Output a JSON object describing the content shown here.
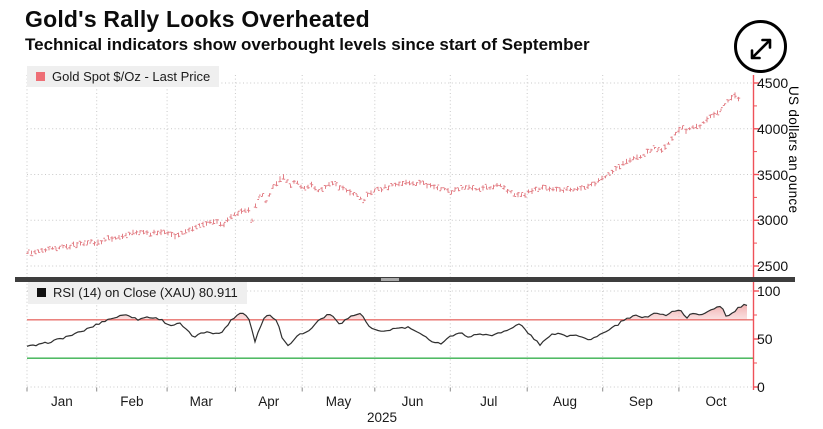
{
  "header": {
    "title": "Gold's Rally Looks Overheated",
    "subtitle": "Technical indicators show overbought levels since start of September"
  },
  "expand_button": {
    "icon": "expand-diagonal-arrows"
  },
  "price_panel": {
    "legend": {
      "swatch_color": "#ee6f76",
      "label": "Gold Spot $/Oz - Last Price"
    },
    "axis_right": {
      "title": "US dollars an ounce",
      "ticks": [
        4500,
        4000,
        3500,
        3000,
        2500
      ]
    }
  },
  "rsi_panel": {
    "legend": {
      "swatch_color": "#111111",
      "label": "RSI (14)  on Close (XAU) 80.911"
    },
    "axis_right": {
      "ticks": [
        100,
        50,
        0
      ]
    },
    "overbought_level": 70,
    "oversold_level": 30
  },
  "x_axis": {
    "months": [
      "Jan",
      "Feb",
      "Mar",
      "Apr",
      "May",
      "Jun",
      "Jul",
      "Aug",
      "Sep",
      "Oct"
    ],
    "year": "2025",
    "month_edges": [
      0.0,
      0.096,
      0.193,
      0.287,
      0.379,
      0.479,
      0.583,
      0.689,
      0.793,
      0.898,
      1.0
    ]
  },
  "colors": {
    "price_series": "#e2787f",
    "axis_line": "#ef5159",
    "grid": "#c9c9c9",
    "divider": "#3e3e3e",
    "rsi_line": "#2f2f2f",
    "overbought_line": "#e8706c",
    "oversold_line": "#37b04e",
    "overbought_fill_top": "#e87f7f",
    "overbought_fill_bottom": "#f6caca",
    "legend_bg": "#efefef"
  },
  "chart_data": [
    {
      "type": "ohlc",
      "panel": "price",
      "name": "Gold Spot $/Oz - Last Price",
      "x_unit": "fraction of x-axis, Jan 2025 through late Oct 2025",
      "y_unit": "US dollars an ounce",
      "y_ticks": [
        2500,
        3000,
        3500,
        4000,
        4500
      ],
      "points": [
        [
          0.0,
          2640
        ],
        [
          0.025,
          2670
        ],
        [
          0.045,
          2690
        ],
        [
          0.066,
          2730
        ],
        [
          0.087,
          2770
        ],
        [
          0.096,
          2745
        ],
        [
          0.114,
          2800
        ],
        [
          0.128,
          2820
        ],
        [
          0.142,
          2860
        ],
        [
          0.156,
          2880
        ],
        [
          0.169,
          2850
        ],
        [
          0.183,
          2880
        ],
        [
          0.193,
          2860
        ],
        [
          0.204,
          2830
        ],
        [
          0.218,
          2870
        ],
        [
          0.231,
          2925
        ],
        [
          0.245,
          2970
        ],
        [
          0.259,
          2990
        ],
        [
          0.269,
          2945
        ],
        [
          0.28,
          3030
        ],
        [
          0.287,
          3070
        ],
        [
          0.296,
          3095
        ],
        [
          0.303,
          3140
        ],
        [
          0.31,
          3000
        ],
        [
          0.317,
          3225
        ],
        [
          0.324,
          3280
        ],
        [
          0.331,
          3190
        ],
        [
          0.337,
          3350
        ],
        [
          0.346,
          3415
        ],
        [
          0.354,
          3490
        ],
        [
          0.362,
          3370
        ],
        [
          0.37,
          3435
        ],
        [
          0.379,
          3330
        ],
        [
          0.39,
          3395
        ],
        [
          0.401,
          3310
        ],
        [
          0.412,
          3370
        ],
        [
          0.423,
          3405
        ],
        [
          0.434,
          3350
        ],
        [
          0.445,
          3310
        ],
        [
          0.456,
          3255
        ],
        [
          0.464,
          3225
        ],
        [
          0.472,
          3300
        ],
        [
          0.479,
          3330
        ],
        [
          0.493,
          3360
        ],
        [
          0.507,
          3385
        ],
        [
          0.521,
          3415
        ],
        [
          0.53,
          3395
        ],
        [
          0.541,
          3425
        ],
        [
          0.552,
          3385
        ],
        [
          0.563,
          3360
        ],
        [
          0.573,
          3350
        ],
        [
          0.585,
          3310
        ],
        [
          0.596,
          3350
        ],
        [
          0.607,
          3370
        ],
        [
          0.618,
          3330
        ],
        [
          0.629,
          3350
        ],
        [
          0.64,
          3360
        ],
        [
          0.651,
          3385
        ],
        [
          0.662,
          3330
        ],
        [
          0.673,
          3290
        ],
        [
          0.684,
          3265
        ],
        [
          0.689,
          3300
        ],
        [
          0.7,
          3340
        ],
        [
          0.711,
          3360
        ],
        [
          0.722,
          3350
        ],
        [
          0.733,
          3330
        ],
        [
          0.744,
          3340
        ],
        [
          0.755,
          3345
        ],
        [
          0.766,
          3360
        ],
        [
          0.775,
          3380
        ],
        [
          0.785,
          3420
        ],
        [
          0.795,
          3470
        ],
        [
          0.804,
          3530
        ],
        [
          0.814,
          3580
        ],
        [
          0.824,
          3630
        ],
        [
          0.833,
          3665
        ],
        [
          0.843,
          3695
        ],
        [
          0.851,
          3730
        ],
        [
          0.858,
          3755
        ],
        [
          0.865,
          3785
        ],
        [
          0.872,
          3755
        ],
        [
          0.879,
          3810
        ],
        [
          0.886,
          3860
        ],
        [
          0.892,
          3935
        ],
        [
          0.898,
          3990
        ],
        [
          0.903,
          4020
        ],
        [
          0.909,
          3970
        ],
        [
          0.914,
          4000
        ],
        [
          0.92,
          4030
        ],
        [
          0.925,
          4010
        ],
        [
          0.931,
          4055
        ],
        [
          0.937,
          4095
        ],
        [
          0.942,
          4130
        ],
        [
          0.948,
          4160
        ],
        [
          0.953,
          4190
        ],
        [
          0.959,
          4245
        ],
        [
          0.964,
          4290
        ],
        [
          0.97,
          4330
        ],
        [
          0.975,
          4360
        ],
        [
          0.981,
          4320
        ],
        [
          0.986,
          4350
        ],
        [
          0.99,
          4340
        ]
      ]
    },
    {
      "type": "line",
      "panel": "rsi",
      "name": "RSI (14) on Close (XAU)",
      "last_value": 80.911,
      "ylim": [
        0,
        100
      ],
      "overbought": 70,
      "oversold": 30,
      "points": [
        [
          0.0,
          42
        ],
        [
          0.018,
          44
        ],
        [
          0.045,
          50
        ],
        [
          0.073,
          57
        ],
        [
          0.096,
          65
        ],
        [
          0.11,
          70
        ],
        [
          0.124,
          73
        ],
        [
          0.138,
          76
        ],
        [
          0.152,
          70
        ],
        [
          0.165,
          73
        ],
        [
          0.183,
          71
        ],
        [
          0.197,
          64
        ],
        [
          0.211,
          66
        ],
        [
          0.229,
          52
        ],
        [
          0.248,
          58
        ],
        [
          0.266,
          55
        ],
        [
          0.284,
          72
        ],
        [
          0.296,
          78
        ],
        [
          0.303,
          74
        ],
        [
          0.308,
          68
        ],
        [
          0.313,
          46
        ],
        [
          0.32,
          60
        ],
        [
          0.327,
          73
        ],
        [
          0.335,
          75
        ],
        [
          0.344,
          70
        ],
        [
          0.352,
          50
        ],
        [
          0.36,
          43
        ],
        [
          0.372,
          54
        ],
        [
          0.386,
          57
        ],
        [
          0.404,
          71
        ],
        [
          0.417,
          76
        ],
        [
          0.431,
          66
        ],
        [
          0.445,
          73
        ],
        [
          0.459,
          77
        ],
        [
          0.472,
          62
        ],
        [
          0.486,
          57
        ],
        [
          0.507,
          61
        ],
        [
          0.527,
          62
        ],
        [
          0.541,
          55
        ],
        [
          0.558,
          48
        ],
        [
          0.569,
          45
        ],
        [
          0.583,
          53
        ],
        [
          0.599,
          56
        ],
        [
          0.61,
          52
        ],
        [
          0.624,
          56
        ],
        [
          0.638,
          53
        ],
        [
          0.651,
          57
        ],
        [
          0.665,
          60
        ],
        [
          0.679,
          66
        ],
        [
          0.693,
          54
        ],
        [
          0.707,
          44
        ],
        [
          0.72,
          53
        ],
        [
          0.731,
          57
        ],
        [
          0.742,
          53
        ],
        [
          0.755,
          55
        ],
        [
          0.766,
          52
        ],
        [
          0.775,
          48
        ],
        [
          0.786,
          54
        ],
        [
          0.797,
          57
        ],
        [
          0.808,
          62
        ],
        [
          0.819,
          68
        ],
        [
          0.83,
          72
        ],
        [
          0.841,
          75
        ],
        [
          0.851,
          72
        ],
        [
          0.861,
          76
        ],
        [
          0.87,
          77
        ],
        [
          0.88,
          74
        ],
        [
          0.89,
          79
        ],
        [
          0.899,
          81
        ],
        [
          0.908,
          72
        ],
        [
          0.917,
          77
        ],
        [
          0.927,
          74
        ],
        [
          0.937,
          79
        ],
        [
          0.946,
          82
        ],
        [
          0.956,
          85
        ],
        [
          0.964,
          73
        ],
        [
          0.972,
          77
        ],
        [
          0.981,
          83
        ],
        [
          0.989,
          86
        ],
        [
          0.996,
          80.9
        ]
      ]
    }
  ]
}
